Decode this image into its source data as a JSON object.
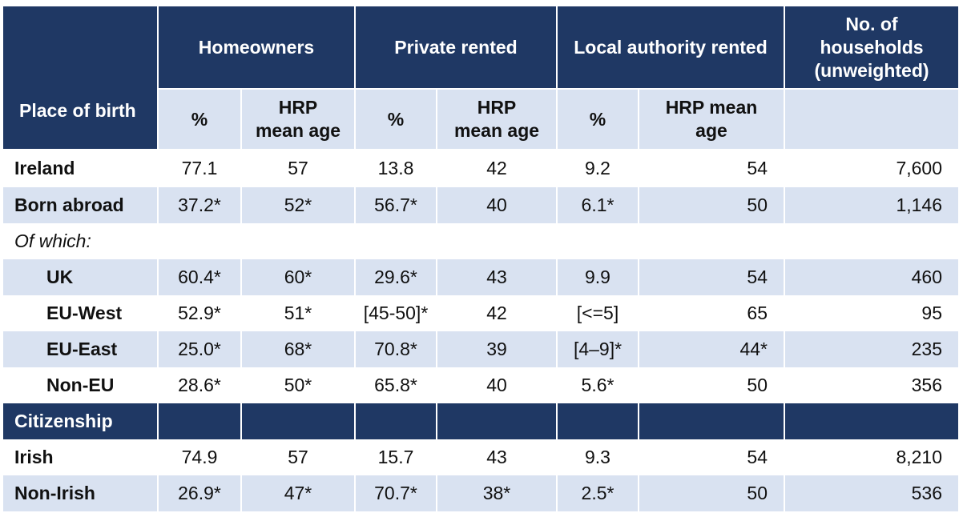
{
  "header": {
    "place_of_birth": "Place of birth",
    "homeowners": "Homeowners",
    "private_rented": "Private rented",
    "local_authority_rented": "Local authority rented",
    "households_line1": "No. of",
    "households_line2": "households",
    "households_line3": "(unweighted)"
  },
  "subheader": {
    "pct": "%",
    "hrp_line1": "HRP",
    "hrp_line2": "mean age",
    "la_hrp_line1": "HRP mean",
    "la_hrp_line2": "age"
  },
  "rows": [
    {
      "label": "Ireland",
      "ho_pct": "77.1",
      "ho_age": "57",
      "pr_pct": "13.8",
      "pr_age": "42",
      "la_pct": "9.2",
      "la_age": "54",
      "households": "7,600"
    },
    {
      "label": "Born abroad",
      "ho_pct": "37.2*",
      "ho_age": "52*",
      "pr_pct": "56.7*",
      "pr_age": "40",
      "la_pct": "6.1*",
      "la_age": "50",
      "households": "1,146"
    },
    {
      "label": "Of which:"
    },
    {
      "label": "UK",
      "ho_pct": "60.4*",
      "ho_age": "60*",
      "pr_pct": "29.6*",
      "pr_age": "43",
      "la_pct": "9.9",
      "la_age": "54",
      "households": "460"
    },
    {
      "label": "EU-West",
      "ho_pct": "52.9*",
      "ho_age": "51*",
      "pr_pct": "[45-50]*",
      "pr_age": "42",
      "la_pct": "[<=5]",
      "la_age": "65",
      "households": "95"
    },
    {
      "label": "EU-East",
      "ho_pct": "25.0*",
      "ho_age": "68*",
      "pr_pct": "70.8*",
      "pr_age": "39",
      "la_pct": "[4–9]*",
      "la_age": "44*",
      "households": "235"
    },
    {
      "label": "Non-EU",
      "ho_pct": "28.6*",
      "ho_age": "50*",
      "pr_pct": "65.8*",
      "pr_age": "40",
      "la_pct": "5.6*",
      "la_age": "50",
      "households": "356"
    },
    {
      "label": "Citizenship"
    },
    {
      "label": "Irish",
      "ho_pct": "74.9",
      "ho_age": "57",
      "pr_pct": "15.7",
      "pr_age": "43",
      "la_pct": "9.3",
      "la_age": "54",
      "households": "8,210"
    },
    {
      "label": "Non-Irish",
      "ho_pct": "26.9*",
      "ho_age": "47*",
      "pr_pct": "70.7*",
      "pr_age": "38*",
      "la_pct": "2.5*",
      "la_age": "50",
      "households": "536"
    }
  ],
  "colors": {
    "header_bg": "#1f3864",
    "band_bg": "#d9e2f1",
    "header_text": "#ffffff"
  }
}
